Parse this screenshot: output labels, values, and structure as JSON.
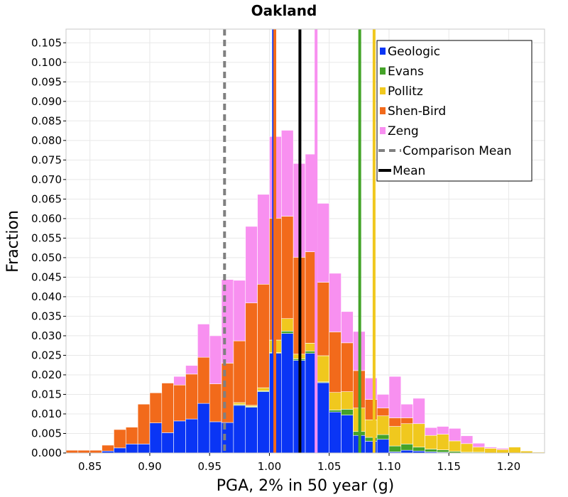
{
  "chart_data": {
    "type": "bar",
    "stacked": true,
    "title": "Oakland",
    "xlabel": "PGA, 2% in 50 year (g)",
    "ylabel": "Fraction",
    "xlim": [
      0.83,
      1.23
    ],
    "ylim": [
      0.0,
      0.1085
    ],
    "xticks": [
      "0.85",
      "0.90",
      "0.95",
      "1.00",
      "1.05",
      "1.10",
      "1.15",
      "1.20"
    ],
    "yticks": [
      "0.000",
      "0.005",
      "0.010",
      "0.015",
      "0.020",
      "0.025",
      "0.030",
      "0.035",
      "0.040",
      "0.045",
      "0.050",
      "0.055",
      "0.060",
      "0.065",
      "0.070",
      "0.075",
      "0.080",
      "0.085",
      "0.090",
      "0.095",
      "0.100",
      "0.105"
    ],
    "grid": true,
    "bin_width": 0.01,
    "bin_centers": [
      0.835,
      0.845,
      0.855,
      0.865,
      0.875,
      0.885,
      0.895,
      0.905,
      0.915,
      0.925,
      0.935,
      0.945,
      0.955,
      0.965,
      0.975,
      0.985,
      0.995,
      1.005,
      1.015,
      1.025,
      1.035,
      1.045,
      1.055,
      1.065,
      1.075,
      1.085,
      1.095,
      1.105,
      1.115,
      1.125,
      1.135,
      1.145,
      1.155,
      1.165,
      1.175,
      1.185,
      1.195,
      1.205,
      1.215,
      1.225
    ],
    "series": [
      {
        "name": "Geologic",
        "color": "#0a35f5",
        "values": [
          0,
          0,
          0,
          0.0005,
          0.0013,
          0.0023,
          0.0023,
          0.0077,
          0.0052,
          0.0082,
          0.0087,
          0.0127,
          0.008,
          0.0078,
          0.0122,
          0.0117,
          0.0157,
          0.0255,
          0.0306,
          0.0237,
          0.0255,
          0.018,
          0.0105,
          0.0097,
          0.0045,
          0.003,
          0.0035,
          0.0003,
          0.0007,
          0.0005,
          0.0003,
          0.0002,
          0,
          0,
          0,
          0,
          0,
          0,
          0,
          0
        ]
      },
      {
        "name": "Evans",
        "color": "#44a329",
        "values": [
          0,
          0,
          0,
          0,
          0,
          0,
          0,
          0,
          0,
          0,
          0,
          0,
          0,
          0,
          0.0002,
          0.0002,
          0.0002,
          0.0002,
          0.0006,
          0.0004,
          0.0006,
          0.0002,
          0.0005,
          0.0015,
          0.001,
          0.001,
          0.0012,
          0.0015,
          0.0016,
          0.001,
          0.0007,
          0.0006,
          0.0004,
          0.0002,
          0.0002,
          0,
          0,
          0,
          0,
          0
        ]
      },
      {
        "name": "Pollitz",
        "color": "#f0c81e",
        "values": [
          0,
          0,
          0,
          0,
          0,
          0,
          0,
          0,
          0,
          0,
          0,
          0,
          0,
          0,
          0.0005,
          0.0003,
          0.0008,
          0.0032,
          0.0032,
          0.0012,
          0.002,
          0.0067,
          0.0045,
          0.0045,
          0.006,
          0.0045,
          0.0048,
          0.005,
          0.0052,
          0.006,
          0.0035,
          0.004,
          0.0027,
          0.0022,
          0.0013,
          0.0012,
          0.0009,
          0.0015,
          0.0005,
          0.0002
        ]
      },
      {
        "name": "Shen-Bird",
        "color": "#f26a1b",
        "values": [
          0.0007,
          0.0007,
          0.0007,
          0.0015,
          0.0047,
          0.0043,
          0.0102,
          0.0077,
          0.0127,
          0.0092,
          0.0115,
          0.0118,
          0.0097,
          0.0152,
          0.0158,
          0.0262,
          0.0265,
          0.0312,
          0.0262,
          0.0248,
          0.0234,
          0.0188,
          0.0155,
          0.0125,
          0.0096,
          0.0052,
          0.002,
          0.0022,
          0.0015,
          0,
          0,
          0,
          0,
          0,
          0,
          0,
          0,
          0,
          0,
          0
        ]
      },
      {
        "name": "Zeng",
        "color": "#f890f0",
        "values": [
          0,
          0,
          0,
          0,
          0,
          0,
          0,
          0,
          0,
          0.0022,
          0.0022,
          0.0085,
          0.0123,
          0.0214,
          0.0155,
          0.0196,
          0.023,
          0.0209,
          0.022,
          0.024,
          0.025,
          0.0202,
          0.015,
          0.008,
          0.01,
          0.0055,
          0.0035,
          0.0106,
          0.0035,
          0.0065,
          0.002,
          0.002,
          0.0032,
          0.002,
          0.001,
          0.0003,
          0.0003,
          0,
          0,
          0
        ]
      }
    ],
    "vertical_lines": [
      {
        "name": "Geologic",
        "x": 1.0035,
        "color": "#0a35f5",
        "style": "solid"
      },
      {
        "name": "Shen-Bird",
        "x": 1.0045,
        "color": "#f26a1b",
        "style": "solid"
      },
      {
        "name": "Zeng",
        "x": 1.039,
        "color": "#f890f0",
        "style": "solid"
      },
      {
        "name": "Evans",
        "x": 1.0755,
        "color": "#44a329",
        "style": "solid"
      },
      {
        "name": "Pollitz",
        "x": 1.0875,
        "color": "#f0c81e",
        "style": "solid"
      },
      {
        "name": "Comparison Mean",
        "x": 0.9625,
        "color": "#808080",
        "style": "dashed"
      },
      {
        "name": "Mean",
        "x": 1.0255,
        "color": "#000000",
        "style": "solid"
      }
    ],
    "legend": {
      "position": "top-right",
      "entries": [
        {
          "label": "Geologic",
          "color": "#0a35f5",
          "kind": "box"
        },
        {
          "label": "Evans",
          "color": "#44a329",
          "kind": "box"
        },
        {
          "label": "Pollitz",
          "color": "#f0c81e",
          "kind": "box"
        },
        {
          "label": "Shen-Bird",
          "color": "#f26a1b",
          "kind": "box"
        },
        {
          "label": "Zeng",
          "color": "#f890f0",
          "kind": "box"
        },
        {
          "label": "Comparison Mean",
          "color": "#808080",
          "kind": "dashed"
        },
        {
          "label": "Mean",
          "color": "#000000",
          "kind": "line"
        }
      ]
    }
  }
}
